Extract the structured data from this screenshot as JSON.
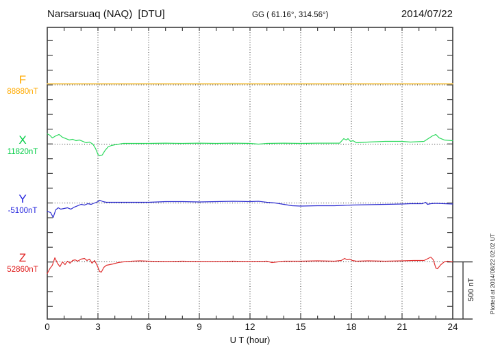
{
  "header": {
    "station_title": "Narsarsuaq (NAQ)  [DTU]",
    "geo_coords": "GG ( 61.16°, 314.56°)",
    "date": "2014/07/22"
  },
  "footer": {
    "xaxis_label": "U T (hour)",
    "scale_bar_label": "500 nT",
    "plotted_at": "Plotted at 2014/08/22 02:02 UT"
  },
  "chart_data": {
    "type": "line",
    "title": "Narsarsuaq (NAQ) magnetogram 2014/07/22",
    "xlabel": "U T (hour)",
    "x_range": [
      0,
      24
    ],
    "xticks": [
      0,
      3,
      6,
      9,
      12,
      15,
      18,
      21,
      24
    ],
    "grid": "dotted vertical every 3 h, dotted horizontal at each component baseline",
    "scale_bar_nT": 500,
    "frame_color": "#3c3c3c",
    "series": [
      {
        "id": "F",
        "label": "F",
        "baseline_label": "88880nT",
        "baseline_nT": 88880,
        "label_color": "#ffaa00",
        "trace_color": "#f5c95c",
        "trace_width": 2,
        "points": [
          [
            0,
            88890
          ],
          [
            3,
            88890
          ],
          [
            6,
            88890
          ],
          [
            9,
            88890
          ],
          [
            12,
            88890
          ],
          [
            15,
            88890
          ],
          [
            18,
            88890
          ],
          [
            21,
            88890
          ],
          [
            24,
            88890
          ]
        ]
      },
      {
        "id": "X",
        "label": "X",
        "baseline_label": "11820nT",
        "baseline_nT": 11820,
        "label_color": "#00cc44",
        "trace_color": "#2bd95c",
        "trace_width": 1.2,
        "points": [
          [
            0,
            11910
          ],
          [
            0.15,
            11898
          ],
          [
            0.3,
            11874
          ],
          [
            0.5,
            11892
          ],
          [
            0.7,
            11904
          ],
          [
            0.9,
            11880
          ],
          [
            1.1,
            11868
          ],
          [
            1.3,
            11856
          ],
          [
            1.5,
            11862
          ],
          [
            1.7,
            11850
          ],
          [
            1.9,
            11856
          ],
          [
            2.1,
            11844
          ],
          [
            2.3,
            11832
          ],
          [
            2.5,
            11838
          ],
          [
            2.7,
            11820
          ],
          [
            2.85,
            11784
          ],
          [
            3.0,
            11730
          ],
          [
            3.1,
            11718
          ],
          [
            3.25,
            11724
          ],
          [
            3.4,
            11760
          ],
          [
            3.6,
            11796
          ],
          [
            3.8,
            11808
          ],
          [
            4.0,
            11814
          ],
          [
            4.5,
            11826
          ],
          [
            5,
            11826
          ],
          [
            6,
            11826
          ],
          [
            7,
            11828
          ],
          [
            8,
            11826
          ],
          [
            9,
            11828
          ],
          [
            10,
            11826
          ],
          [
            11,
            11828
          ],
          [
            12,
            11826
          ],
          [
            12.5,
            11820
          ],
          [
            13,
            11826
          ],
          [
            14,
            11828
          ],
          [
            15,
            11826
          ],
          [
            16,
            11828
          ],
          [
            17,
            11828
          ],
          [
            17.3,
            11828
          ],
          [
            17.55,
            11868
          ],
          [
            17.7,
            11856
          ],
          [
            17.8,
            11868
          ],
          [
            17.95,
            11844
          ],
          [
            18.1,
            11850
          ],
          [
            18.3,
            11832
          ],
          [
            19,
            11838
          ],
          [
            20,
            11844
          ],
          [
            21,
            11844
          ],
          [
            21.5,
            11838
          ],
          [
            22.3,
            11844
          ],
          [
            22.8,
            11892
          ],
          [
            23.0,
            11904
          ],
          [
            23.2,
            11874
          ],
          [
            23.5,
            11856
          ],
          [
            24,
            11850
          ]
        ]
      },
      {
        "id": "Y",
        "label": "Y",
        "baseline_label": "-5100nT",
        "baseline_nT": -5100,
        "label_color": "#2222dd",
        "trace_color": "#2b2bd0",
        "trace_width": 1.2,
        "points": [
          [
            0,
            -5172
          ],
          [
            0.2,
            -5184
          ],
          [
            0.35,
            -5226
          ],
          [
            0.5,
            -5160
          ],
          [
            0.65,
            -5142
          ],
          [
            0.8,
            -5154
          ],
          [
            1.0,
            -5148
          ],
          [
            1.2,
            -5142
          ],
          [
            1.4,
            -5154
          ],
          [
            1.6,
            -5136
          ],
          [
            1.8,
            -5124
          ],
          [
            2.0,
            -5112
          ],
          [
            2.2,
            -5118
          ],
          [
            2.4,
            -5106
          ],
          [
            2.6,
            -5112
          ],
          [
            2.8,
            -5100
          ],
          [
            3.0,
            -5088
          ],
          [
            3.1,
            -5076
          ],
          [
            3.3,
            -5088
          ],
          [
            3.5,
            -5094
          ],
          [
            4,
            -5094
          ],
          [
            5,
            -5094
          ],
          [
            6,
            -5094
          ],
          [
            7,
            -5088
          ],
          [
            8,
            -5088
          ],
          [
            9,
            -5091
          ],
          [
            10,
            -5088
          ],
          [
            11,
            -5085
          ],
          [
            12,
            -5088
          ],
          [
            12.5,
            -5085
          ],
          [
            13,
            -5094
          ],
          [
            13.5,
            -5100
          ],
          [
            14,
            -5112
          ],
          [
            14.5,
            -5124
          ],
          [
            15,
            -5127
          ],
          [
            16,
            -5124
          ],
          [
            17,
            -5124
          ],
          [
            17.5,
            -5121
          ],
          [
            18,
            -5118
          ],
          [
            19,
            -5115
          ],
          [
            20,
            -5112
          ],
          [
            21,
            -5109
          ],
          [
            21.5,
            -5106
          ],
          [
            22.2,
            -5106
          ],
          [
            22.4,
            -5094
          ],
          [
            22.5,
            -5112
          ],
          [
            22.7,
            -5106
          ],
          [
            23,
            -5103
          ],
          [
            23.5,
            -5106
          ],
          [
            24,
            -5109
          ]
        ]
      },
      {
        "id": "Z",
        "label": "Z",
        "baseline_label": "52860nT",
        "baseline_nT": 52860,
        "label_color": "#e02020",
        "trace_color": "#e03030",
        "trace_width": 1.2,
        "points": [
          [
            0,
            52758
          ],
          [
            0.15,
            52800
          ],
          [
            0.3,
            52830
          ],
          [
            0.45,
            52896
          ],
          [
            0.6,
            52848
          ],
          [
            0.75,
            52818
          ],
          [
            0.9,
            52860
          ],
          [
            1.05,
            52836
          ],
          [
            1.2,
            52866
          ],
          [
            1.35,
            52848
          ],
          [
            1.5,
            52872
          ],
          [
            1.65,
            52878
          ],
          [
            1.8,
            52866
          ],
          [
            2.0,
            52884
          ],
          [
            2.2,
            52890
          ],
          [
            2.35,
            52872
          ],
          [
            2.5,
            52884
          ],
          [
            2.65,
            52848
          ],
          [
            2.8,
            52872
          ],
          [
            2.95,
            52830
          ],
          [
            3.1,
            52776
          ],
          [
            3.2,
            52770
          ],
          [
            3.35,
            52812
          ],
          [
            3.5,
            52830
          ],
          [
            3.7,
            52836
          ],
          [
            3.9,
            52842
          ],
          [
            4.2,
            52854
          ],
          [
            4.5,
            52860
          ],
          [
            5,
            52866
          ],
          [
            5.5,
            52869
          ],
          [
            6,
            52866
          ],
          [
            7,
            52863
          ],
          [
            8,
            52866
          ],
          [
            9,
            52863
          ],
          [
            10,
            52863
          ],
          [
            11,
            52866
          ],
          [
            12,
            52863
          ],
          [
            13,
            52866
          ],
          [
            13.3,
            52854
          ],
          [
            14,
            52866
          ],
          [
            15,
            52866
          ],
          [
            16,
            52869
          ],
          [
            17,
            52866
          ],
          [
            17.4,
            52872
          ],
          [
            17.6,
            52890
          ],
          [
            17.75,
            52878
          ],
          [
            17.9,
            52884
          ],
          [
            18.05,
            52872
          ],
          [
            18.3,
            52866
          ],
          [
            19,
            52869
          ],
          [
            20,
            52866
          ],
          [
            21,
            52869
          ],
          [
            21.7,
            52872
          ],
          [
            22.3,
            52872
          ],
          [
            22.55,
            52890
          ],
          [
            22.7,
            52902
          ],
          [
            22.85,
            52878
          ],
          [
            23.0,
            52806
          ],
          [
            23.1,
            52800
          ],
          [
            23.3,
            52836
          ],
          [
            23.5,
            52860
          ],
          [
            23.7,
            52866
          ],
          [
            24,
            52860
          ]
        ]
      }
    ]
  }
}
